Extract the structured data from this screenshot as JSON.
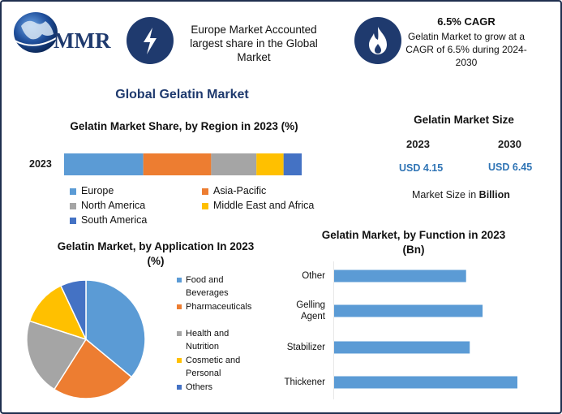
{
  "header": {
    "logo_text": "MMR",
    "logo_icon": "globe-icon",
    "box1_icon": "lightning-icon",
    "box1_text": "Europe Market Accounted largest share in the Global Market",
    "box2_icon": "flame-icon",
    "box2_title": "6.5% CAGR",
    "box2_text": "Gelatin Market to grow at a CAGR of 6.5% during 2024-2030"
  },
  "main_title": "Global Gelatin Market",
  "market_size": {
    "title": "Gelatin Market Size",
    "years": [
      "2023",
      "2030"
    ],
    "values": [
      "USD 4.15",
      "USD 6.45"
    ],
    "note_prefix": "Market Size in ",
    "note_bold": "Billion"
  },
  "colors": {
    "blue": "#5b9bd5",
    "orange": "#ed7d31",
    "gray": "#a5a5a5",
    "yellow": "#ffc000",
    "darkblue": "#4472c4",
    "brand": "#1f3a6e"
  },
  "chart_data": [
    {
      "type": "bar",
      "orientation": "horizontal-stacked",
      "title": "Gelatin Market Share, by Region in 2023 (%)",
      "categories": [
        "2023"
      ],
      "series": [
        {
          "name": "Europe",
          "values": [
            35
          ],
          "color": "#5b9bd5"
        },
        {
          "name": "Asia-Pacific",
          "values": [
            30
          ],
          "color": "#ed7d31"
        },
        {
          "name": "North America",
          "values": [
            20
          ],
          "color": "#a5a5a5"
        },
        {
          "name": "Middle East and Africa",
          "values": [
            12
          ],
          "color": "#ffc000"
        },
        {
          "name": "South America",
          "values": [
            8
          ],
          "color": "#4472c4"
        }
      ],
      "legend": "bottom"
    },
    {
      "type": "pie",
      "title_line1": "Gelatin Market, by Application In 2023",
      "title_line2": "(%)",
      "labels": [
        "Food and Beverages",
        "Pharmaceuticals",
        "Health and Nutrition",
        "Cosmetic and Personal",
        "Others"
      ],
      "legend_lines": [
        [
          "Food and",
          "Beverages"
        ],
        [
          "Pharmaceuticals"
        ],
        [
          "Health and",
          "Nutrition"
        ],
        [
          "Cosmetic and",
          "Personal"
        ],
        [
          "Others"
        ]
      ],
      "values": [
        36,
        23,
        21,
        13,
        7
      ],
      "colors": [
        "#5b9bd5",
        "#ed7d31",
        "#a5a5a5",
        "#ffc000",
        "#4472c4"
      ],
      "legend": "right"
    },
    {
      "type": "bar",
      "orientation": "horizontal",
      "title_line1": "Gelatin Market, by Function in 2023",
      "title_line2": "(Bn)",
      "categories": [
        "Other",
        "Gelling Agent",
        "Stabilizer",
        "Thickener"
      ],
      "category_lines": [
        [
          "Other"
        ],
        [
          "Gelling",
          "Agent"
        ],
        [
          "Stabilizer"
        ],
        [
          "Thickener"
        ]
      ],
      "values": [
        0.72,
        0.81,
        0.74,
        1.0
      ],
      "xlim": [
        0,
        1.0
      ],
      "color": "#5b9bd5"
    }
  ]
}
